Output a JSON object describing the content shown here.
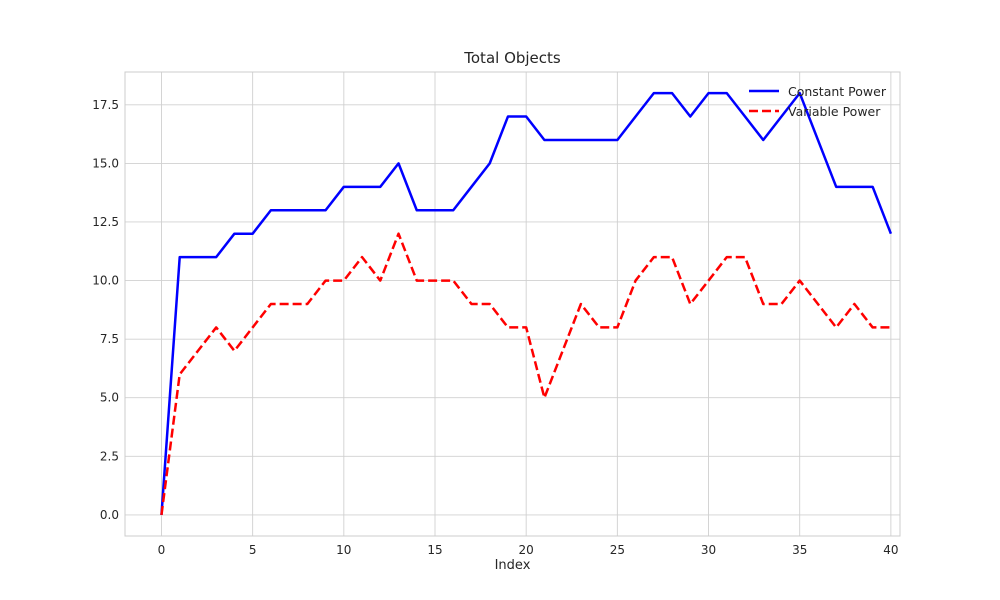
{
  "chart_data": {
    "type": "line",
    "title": "Total Objects",
    "xlabel": "Index",
    "ylabel": "",
    "xlim": [
      -2,
      40.5
    ],
    "ylim": [
      -0.9,
      18.9
    ],
    "xticks": [
      0,
      5,
      10,
      15,
      20,
      25,
      30,
      35,
      40
    ],
    "xtick_labels": [
      "0",
      "5",
      "10",
      "15",
      "20",
      "25",
      "30",
      "35",
      "40"
    ],
    "yticks": [
      0,
      2.5,
      5,
      7.5,
      10,
      12.5,
      15,
      17.5
    ],
    "ytick_labels": [
      "0.0",
      "2.5",
      "5.0",
      "7.5",
      "10.0",
      "12.5",
      "15.0",
      "17.5"
    ],
    "grid": true,
    "legend_position": "top-right",
    "x": [
      0,
      1,
      2,
      3,
      4,
      5,
      6,
      7,
      8,
      9,
      10,
      11,
      12,
      13,
      14,
      15,
      16,
      17,
      18,
      19,
      20,
      21,
      22,
      23,
      24,
      25,
      26,
      27,
      28,
      29,
      30,
      31,
      32,
      33,
      34,
      35,
      36,
      37,
      38,
      39,
      40
    ],
    "series": [
      {
        "name": "Constant Power",
        "color": "#0000ff",
        "style": "solid",
        "values": [
          0,
          11,
          11,
          11,
          12,
          12,
          13,
          13,
          13,
          13,
          14,
          14,
          14,
          15,
          13,
          13,
          13,
          14,
          15,
          17,
          17,
          16,
          16,
          16,
          16,
          16,
          17,
          18,
          18,
          17,
          18,
          18,
          17,
          16,
          17,
          18,
          16,
          14,
          14,
          14,
          12
        ]
      },
      {
        "name": "Variable Power",
        "color": "#ff0000",
        "style": "dashed",
        "values": [
          0,
          6,
          7,
          8,
          7,
          8,
          9,
          9,
          9,
          10,
          10,
          11,
          10,
          12,
          10,
          10,
          10,
          9,
          9,
          8,
          8,
          5,
          7,
          9,
          8,
          8,
          10,
          11,
          11,
          9,
          10,
          11,
          11,
          9,
          9,
          10,
          9,
          8,
          9,
          8,
          8
        ]
      }
    ]
  }
}
